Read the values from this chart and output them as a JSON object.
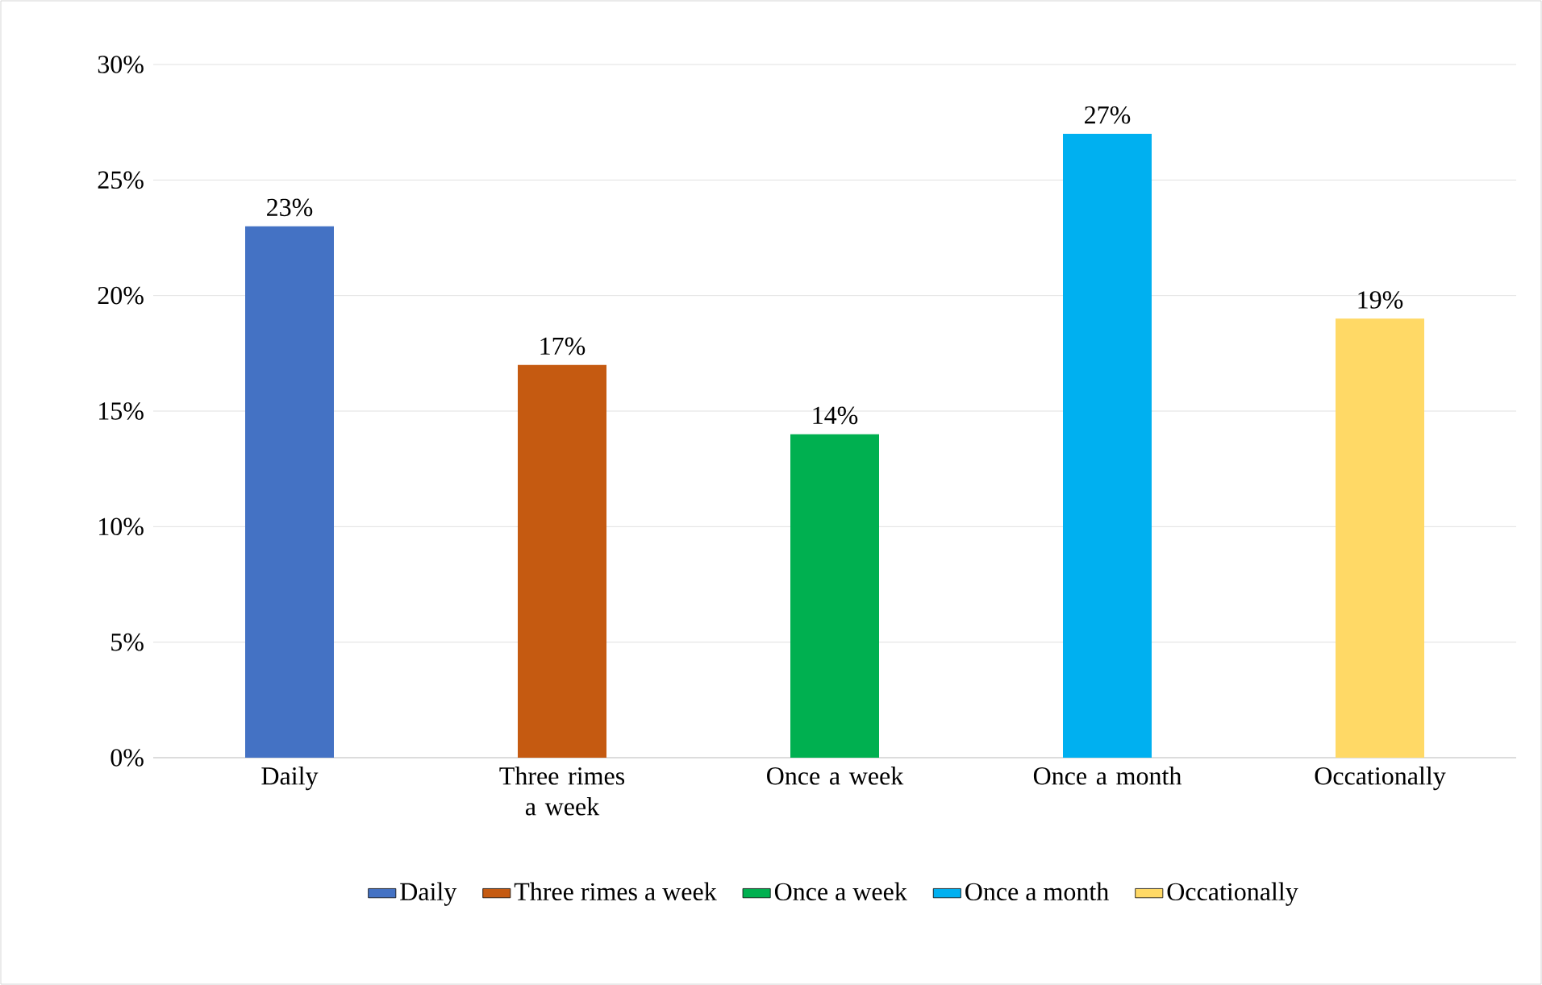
{
  "chart_data": {
    "type": "bar",
    "categories": [
      "Daily",
      "Three rimes a week",
      "Once a week",
      "Once a month",
      "Occationally"
    ],
    "series": [
      {
        "name": "Daily",
        "color": "#4472c4",
        "values": [
          23,
          null,
          null,
          null,
          null
        ],
        "value_labels": [
          "23%",
          null,
          null,
          null,
          null
        ]
      },
      {
        "name": "Three rimes a week",
        "color": "#c55a11",
        "values": [
          null,
          17,
          null,
          null,
          null
        ],
        "value_labels": [
          null,
          "17%",
          null,
          null,
          null
        ]
      },
      {
        "name": "Once a week",
        "color": "#00b050",
        "values": [
          null,
          null,
          14,
          null,
          null
        ],
        "value_labels": [
          null,
          null,
          "14%",
          null,
          null
        ]
      },
      {
        "name": "Once a month",
        "color": "#00b0f0",
        "values": [
          null,
          null,
          null,
          27,
          null
        ],
        "value_labels": [
          null,
          null,
          null,
          "27%",
          null
        ]
      },
      {
        "name": "Occationally",
        "color": "#ffd966",
        "values": [
          null,
          null,
          null,
          null,
          19
        ],
        "value_labels": [
          null,
          null,
          null,
          null,
          "19%"
        ]
      }
    ],
    "ylim": [
      0,
      30
    ],
    "yticks": [
      {
        "value": 0,
        "label": "0%"
      },
      {
        "value": 5,
        "label": "5%"
      },
      {
        "value": 10,
        "label": "10%"
      },
      {
        "value": 15,
        "label": "15%"
      },
      {
        "value": 20,
        "label": "20%"
      },
      {
        "value": 25,
        "label": "25%"
      },
      {
        "value": 30,
        "label": "30%"
      }
    ],
    "grid": "y",
    "legend": "bottom"
  }
}
